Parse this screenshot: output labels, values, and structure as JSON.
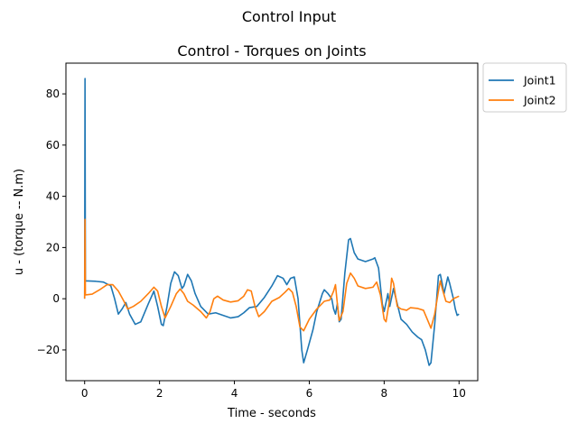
{
  "figure": {
    "suptitle": "Control Input"
  },
  "chart_data": {
    "type": "line",
    "title": "Control - Torques on Joints",
    "xlabel": "Time - seconds",
    "ylabel": "u - (torque -- N.m)",
    "xlim": [
      -0.5,
      10.5
    ],
    "ylim": [
      -32,
      92
    ],
    "xticks": [
      0,
      2,
      4,
      6,
      8,
      10
    ],
    "yticks": [
      -20,
      0,
      20,
      40,
      60,
      80
    ],
    "grid": false,
    "legend_position": "outside-top-right",
    "series": [
      {
        "name": "Joint1",
        "color": "#1f77b4",
        "points": [
          [
            0,
            0
          ],
          [
            0.01,
            86
          ],
          [
            0.02,
            7
          ],
          [
            0.3,
            6.8
          ],
          [
            0.5,
            6.5
          ],
          [
            0.7,
            5
          ],
          [
            0.8,
            0
          ],
          [
            0.9,
            -6
          ],
          [
            1.0,
            -4
          ],
          [
            1.1,
            -1.5
          ],
          [
            1.2,
            -6
          ],
          [
            1.35,
            -10
          ],
          [
            1.5,
            -9
          ],
          [
            1.7,
            -2
          ],
          [
            1.85,
            3
          ],
          [
            1.95,
            -3
          ],
          [
            2.05,
            -10
          ],
          [
            2.1,
            -10.5
          ],
          [
            2.2,
            -3
          ],
          [
            2.3,
            6
          ],
          [
            2.4,
            10.5
          ],
          [
            2.5,
            9
          ],
          [
            2.6,
            4
          ],
          [
            2.65,
            5
          ],
          [
            2.75,
            9.5
          ],
          [
            2.85,
            7
          ],
          [
            2.95,
            2
          ],
          [
            3.1,
            -3
          ],
          [
            3.3,
            -6
          ],
          [
            3.5,
            -5.5
          ],
          [
            3.7,
            -6.5
          ],
          [
            3.9,
            -7.5
          ],
          [
            4.1,
            -7
          ],
          [
            4.25,
            -5.5
          ],
          [
            4.4,
            -3.5
          ],
          [
            4.6,
            -3
          ],
          [
            4.8,
            0.5
          ],
          [
            5.0,
            5
          ],
          [
            5.15,
            9
          ],
          [
            5.3,
            8
          ],
          [
            5.4,
            5.5
          ],
          [
            5.5,
            8
          ],
          [
            5.6,
            8.5
          ],
          [
            5.7,
            0
          ],
          [
            5.8,
            -20
          ],
          [
            5.85,
            -25
          ],
          [
            5.95,
            -20
          ],
          [
            6.1,
            -12
          ],
          [
            6.2,
            -5
          ],
          [
            6.35,
            2
          ],
          [
            6.4,
            3.5
          ],
          [
            6.5,
            2
          ],
          [
            6.6,
            0
          ],
          [
            6.65,
            -4
          ],
          [
            6.7,
            -6
          ],
          [
            6.75,
            -2
          ],
          [
            6.8,
            -9
          ],
          [
            6.85,
            -8
          ],
          [
            6.95,
            10
          ],
          [
            7.05,
            23
          ],
          [
            7.1,
            23.5
          ],
          [
            7.2,
            18
          ],
          [
            7.3,
            15.5
          ],
          [
            7.5,
            14.5
          ],
          [
            7.7,
            15.5
          ],
          [
            7.75,
            16
          ],
          [
            7.85,
            12
          ],
          [
            7.95,
            -2
          ],
          [
            8.0,
            -5
          ],
          [
            8.1,
            2
          ],
          [
            8.15,
            -3
          ],
          [
            8.25,
            4
          ],
          [
            8.35,
            -2
          ],
          [
            8.45,
            -8
          ],
          [
            8.6,
            -10
          ],
          [
            8.75,
            -13
          ],
          [
            8.9,
            -15
          ],
          [
            9.0,
            -16
          ],
          [
            9.1,
            -20
          ],
          [
            9.2,
            -26
          ],
          [
            9.25,
            -25
          ],
          [
            9.35,
            -10
          ],
          [
            9.45,
            9
          ],
          [
            9.5,
            9.5
          ],
          [
            9.55,
            6
          ],
          [
            9.6,
            2
          ],
          [
            9.7,
            8.5
          ],
          [
            9.75,
            6
          ],
          [
            9.85,
            0
          ],
          [
            9.9,
            -4
          ],
          [
            9.95,
            -6.5
          ],
          [
            10.0,
            -6
          ]
        ]
      },
      {
        "name": "Joint2",
        "color": "#ff7f0e",
        "points": [
          [
            0,
            0
          ],
          [
            0.01,
            31
          ],
          [
            0.02,
            1.5
          ],
          [
            0.2,
            1.8
          ],
          [
            0.4,
            3.5
          ],
          [
            0.6,
            5.5
          ],
          [
            0.75,
            5.5
          ],
          [
            0.9,
            3
          ],
          [
            1.05,
            -1
          ],
          [
            1.15,
            -4
          ],
          [
            1.3,
            -3
          ],
          [
            1.5,
            -1
          ],
          [
            1.7,
            2
          ],
          [
            1.85,
            4.5
          ],
          [
            1.95,
            3
          ],
          [
            2.05,
            -3
          ],
          [
            2.15,
            -7.5
          ],
          [
            2.3,
            -3
          ],
          [
            2.45,
            2
          ],
          [
            2.55,
            3.8
          ],
          [
            2.65,
            2
          ],
          [
            2.75,
            -1
          ],
          [
            2.9,
            -2.5
          ],
          [
            3.1,
            -5
          ],
          [
            3.25,
            -7.5
          ],
          [
            3.35,
            -5
          ],
          [
            3.45,
            0
          ],
          [
            3.55,
            1
          ],
          [
            3.7,
            -0.5
          ],
          [
            3.9,
            -1.3
          ],
          [
            4.1,
            -0.8
          ],
          [
            4.25,
            1
          ],
          [
            4.35,
            3.5
          ],
          [
            4.45,
            3
          ],
          [
            4.55,
            -3
          ],
          [
            4.65,
            -7
          ],
          [
            4.8,
            -5
          ],
          [
            5.0,
            -1
          ],
          [
            5.2,
            0.5
          ],
          [
            5.35,
            2.5
          ],
          [
            5.45,
            4
          ],
          [
            5.55,
            2.5
          ],
          [
            5.65,
            -3
          ],
          [
            5.75,
            -11
          ],
          [
            5.85,
            -12.5
          ],
          [
            6.0,
            -8
          ],
          [
            6.2,
            -4
          ],
          [
            6.4,
            -1
          ],
          [
            6.55,
            -0.5
          ],
          [
            6.65,
            3
          ],
          [
            6.7,
            5.5
          ],
          [
            6.75,
            -2
          ],
          [
            6.8,
            -8.5
          ],
          [
            6.9,
            -5
          ],
          [
            7.0,
            6
          ],
          [
            7.1,
            10
          ],
          [
            7.2,
            8
          ],
          [
            7.3,
            5
          ],
          [
            7.5,
            4
          ],
          [
            7.7,
            4.5
          ],
          [
            7.8,
            6.5
          ],
          [
            7.9,
            1.5
          ],
          [
            8.0,
            -8
          ],
          [
            8.05,
            -9
          ],
          [
            8.15,
            0
          ],
          [
            8.2,
            8
          ],
          [
            8.25,
            6
          ],
          [
            8.35,
            -3
          ],
          [
            8.45,
            -4
          ],
          [
            8.6,
            -4.5
          ],
          [
            8.7,
            -3.5
          ],
          [
            8.9,
            -3.8
          ],
          [
            9.05,
            -4.5
          ],
          [
            9.15,
            -8
          ],
          [
            9.25,
            -11.5
          ],
          [
            9.35,
            -6
          ],
          [
            9.45,
            3
          ],
          [
            9.5,
            7
          ],
          [
            9.55,
            4
          ],
          [
            9.65,
            -1
          ],
          [
            9.75,
            -1.5
          ],
          [
            9.85,
            0
          ],
          [
            10.0,
            1
          ]
        ]
      }
    ]
  }
}
